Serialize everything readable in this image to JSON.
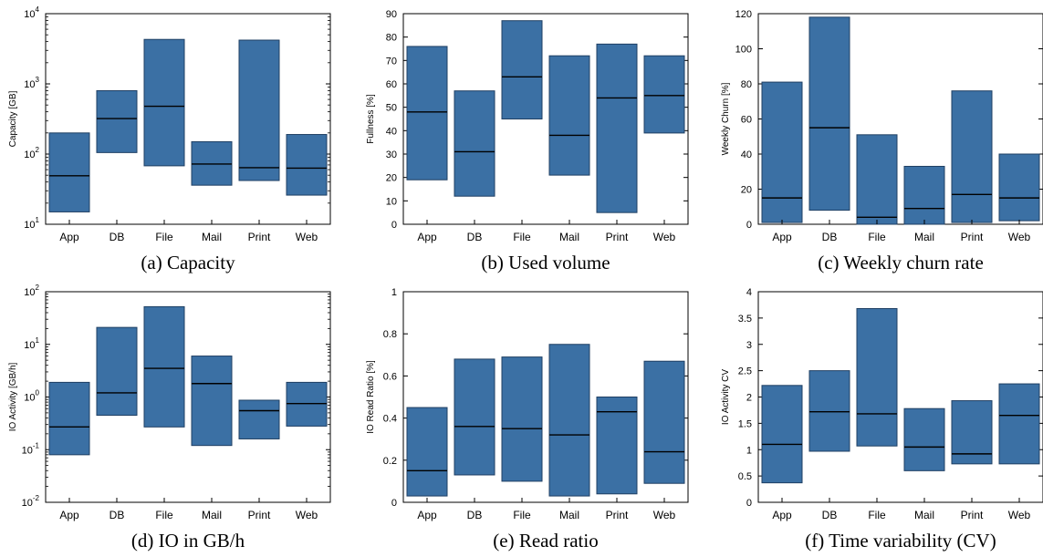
{
  "colors": {
    "box_fill": "#3b70a4",
    "box_stroke": "#1f3f63",
    "median": "#000000"
  },
  "chart_data": [
    {
      "type": "box",
      "caption": "(a) Capacity",
      "ylabel": "Capacity [GB]",
      "scale": "log",
      "ylim": [
        10,
        10000
      ],
      "yticks": [
        10,
        100,
        1000,
        10000
      ],
      "ytick_labels": [
        [
          "10",
          "1"
        ],
        [
          "10",
          "2"
        ],
        [
          "10",
          "3"
        ],
        [
          "10",
          "4"
        ]
      ],
      "categories": [
        "App",
        "DB",
        "File",
        "Mail",
        "Print",
        "Web"
      ],
      "low": [
        15,
        105,
        68,
        36,
        42,
        26
      ],
      "median": [
        49,
        320,
        480,
        72,
        64,
        63
      ],
      "high": [
        200,
        800,
        4300,
        150,
        4200,
        190
      ]
    },
    {
      "type": "box",
      "caption": "(b) Used volume",
      "ylabel": "Fullness [%]",
      "scale": "linear",
      "ylim": [
        0,
        90
      ],
      "yticks": [
        0,
        10,
        20,
        30,
        40,
        50,
        60,
        70,
        80,
        90
      ],
      "ytick_labels": [
        "0",
        "10",
        "20",
        "30",
        "40",
        "50",
        "60",
        "70",
        "80",
        "90"
      ],
      "categories": [
        "App",
        "DB",
        "File",
        "Mail",
        "Print",
        "Web"
      ],
      "low": [
        19,
        12,
        45,
        21,
        5,
        39
      ],
      "median": [
        48,
        31,
        63,
        38,
        54,
        55
      ],
      "high": [
        76,
        57,
        87,
        72,
        77,
        72
      ]
    },
    {
      "type": "box",
      "caption": "(c) Weekly churn rate",
      "ylabel": "Weekly Churn [%]",
      "scale": "linear",
      "ylim": [
        0,
        120
      ],
      "yticks": [
        0,
        20,
        40,
        60,
        80,
        100,
        120
      ],
      "ytick_labels": [
        "0",
        "20",
        "40",
        "60",
        "80",
        "100",
        "120"
      ],
      "categories": [
        "App",
        "DB",
        "File",
        "Mail",
        "Print",
        "Web"
      ],
      "low": [
        1,
        8,
        0,
        0,
        1,
        2
      ],
      "median": [
        15,
        55,
        4,
        9,
        17,
        15
      ],
      "high": [
        81,
        118,
        51,
        33,
        76,
        40
      ]
    },
    {
      "type": "box",
      "caption": "(d) IO in GB/h",
      "ylabel": "IO Activity [GB/h]",
      "scale": "log",
      "ylim": [
        0.01,
        100
      ],
      "yticks": [
        0.01,
        0.1,
        1,
        10,
        100
      ],
      "ytick_labels": [
        [
          "10",
          "-2"
        ],
        [
          "10",
          "-1"
        ],
        [
          "10",
          "0"
        ],
        [
          "10",
          "1"
        ],
        [
          "10",
          "2"
        ]
      ],
      "categories": [
        "App",
        "DB",
        "File",
        "Mail",
        "Print",
        "Web"
      ],
      "low": [
        0.08,
        0.45,
        0.27,
        0.12,
        0.16,
        0.28
      ],
      "median": [
        0.27,
        1.2,
        3.5,
        1.8,
        0.55,
        0.75
      ],
      "high": [
        1.9,
        21,
        52,
        6,
        0.87,
        1.9
      ]
    },
    {
      "type": "box",
      "caption": "(e) Read ratio",
      "ylabel": "IO Read Ratio [%]",
      "scale": "linear",
      "ylim": [
        0,
        1
      ],
      "yticks": [
        0,
        0.2,
        0.4,
        0.6,
        0.8,
        1
      ],
      "ytick_labels": [
        "0",
        "0.2",
        "0.4",
        "0.6",
        "0.8",
        "1"
      ],
      "categories": [
        "App",
        "DB",
        "File",
        "Mail",
        "Print",
        "Web"
      ],
      "low": [
        0.03,
        0.13,
        0.1,
        0.03,
        0.04,
        0.09
      ],
      "median": [
        0.15,
        0.36,
        0.35,
        0.32,
        0.43,
        0.24
      ],
      "high": [
        0.45,
        0.68,
        0.69,
        0.75,
        0.5,
        0.67
      ]
    },
    {
      "type": "box",
      "caption": "(f) Time variability (CV)",
      "ylabel": "IO Activity CV",
      "scale": "linear",
      "ylim": [
        0,
        4
      ],
      "yticks": [
        0,
        0.5,
        1,
        1.5,
        2,
        2.5,
        3,
        3.5,
        4
      ],
      "ytick_labels": [
        "0",
        "0.5",
        "1",
        "1.5",
        "2",
        "2.5",
        "3",
        "3.5",
        "4"
      ],
      "categories": [
        "App",
        "DB",
        "File",
        "Mail",
        "Print",
        "Web"
      ],
      "low": [
        0.37,
        0.97,
        1.07,
        0.6,
        0.73,
        0.73
      ],
      "median": [
        1.1,
        1.72,
        1.68,
        1.05,
        0.92,
        1.65
      ],
      "high": [
        2.22,
        2.5,
        3.68,
        1.78,
        1.93,
        2.25
      ]
    }
  ]
}
